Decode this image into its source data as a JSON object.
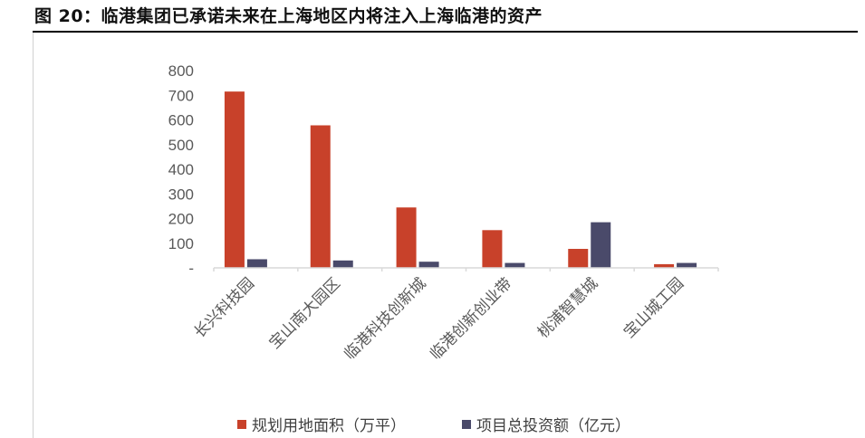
{
  "title": "图 20：临港集团已承诺未来在上海地区内将注入上海临港的资产",
  "chart_data": {
    "type": "bar",
    "categories": [
      "长兴科技园",
      "宝山南大园区",
      "临港科技创新城",
      "临港创新创业带",
      "桃浦智慧城",
      "宝山城工园"
    ],
    "series": [
      {
        "name": "规划用地面积（万平）",
        "color": "#c8412a",
        "values": [
          715,
          578,
          245,
          153,
          77,
          15
        ]
      },
      {
        "name": "项目总投资额（亿元）",
        "color": "#4a4a6a",
        "values": [
          35,
          30,
          25,
          20,
          185,
          20
        ]
      }
    ],
    "y_ticks": [
      0,
      100,
      200,
      300,
      400,
      500,
      600,
      700,
      800
    ],
    "y_tick_labels": [
      "-",
      "100",
      "200",
      "300",
      "400",
      "500",
      "600",
      "700",
      "800"
    ],
    "ylim": [
      0,
      800
    ],
    "grid": false,
    "legend_position": "bottom"
  }
}
